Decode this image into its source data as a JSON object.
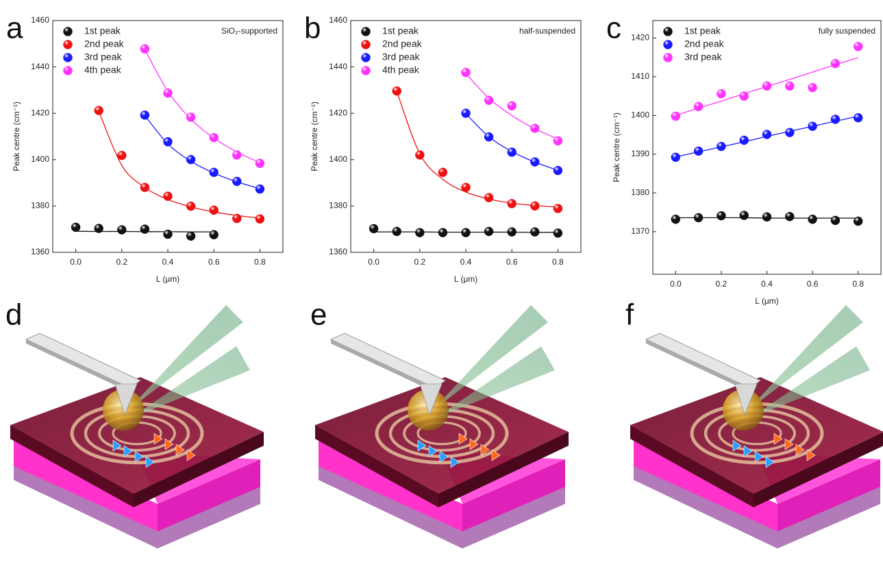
{
  "chart_data": [
    {
      "type": "scatter",
      "panel_label": "a",
      "annotation": "SiO₂-supported",
      "xlabel": "L (μm)",
      "ylabel": "Peak centre (cm⁻¹)",
      "xlim": [
        -0.1,
        0.9
      ],
      "ylim": [
        1360,
        1460
      ],
      "xticks": [
        {
          "value": 0,
          "label": "0.0"
        },
        0.2,
        0.4,
        0.6,
        0.8
      ],
      "yticks": [
        1360,
        1380,
        1400,
        1420,
        1440,
        1460
      ],
      "legend": "upper left",
      "series": [
        {
          "name": "1st peak",
          "color": "#111111",
          "x": [
            0,
            0.1,
            0.2,
            0.3,
            0.4,
            0.5,
            0.6
          ],
          "values": [
            1370.8,
            1370.3,
            1369.7,
            1370.0,
            1367.8,
            1367.0,
            1367.6
          ],
          "fit": [
            1369.1,
            1369.0,
            1369.0,
            1368.9,
            1368.9,
            1368.8,
            1368.8
          ]
        },
        {
          "name": "2nd peak",
          "color": "#ee1111",
          "x": [
            0.1,
            0.2,
            0.3,
            0.4,
            0.5,
            0.6,
            0.7,
            0.8
          ],
          "values": [
            1421.2,
            1401.8,
            1388.0,
            1384.2,
            1379.9,
            1378.2,
            1374.6,
            1374.4
          ],
          "fit": [
            1421.0,
            1397.5,
            1388.0,
            1382.8,
            1379.6,
            1377.4,
            1375.9,
            1374.7
          ]
        },
        {
          "name": "3rd peak",
          "color": "#1a1aff",
          "x": [
            0.3,
            0.4,
            0.5,
            0.6,
            0.7,
            0.8
          ],
          "values": [
            1419.2,
            1407.7,
            1400.0,
            1394.5,
            1390.6,
            1387.3
          ],
          "fit": [
            1419.0,
            1406.8,
            1399.3,
            1394.2,
            1390.4,
            1387.5
          ]
        },
        {
          "name": "4th peak",
          "color": "#ff33ff",
          "x": [
            0.3,
            0.4,
            0.5,
            0.6,
            0.7,
            0.8
          ],
          "values": [
            1447.8,
            1428.7,
            1418.3,
            1409.5,
            1402.0,
            1398.4
          ],
          "fit": [
            1447.5,
            1429.5,
            1417.5,
            1409.3,
            1403.3,
            1398.7
          ]
        }
      ]
    },
    {
      "type": "scatter",
      "panel_label": "b",
      "annotation": "half-suspended",
      "xlabel": "L (μm)",
      "ylabel": "Peak centre (cm⁻¹)",
      "xlim": [
        -0.1,
        0.9
      ],
      "ylim": [
        1360,
        1460
      ],
      "xticks": [
        {
          "value": 0,
          "label": "0.0"
        },
        0.2,
        0.4,
        0.6,
        0.8
      ],
      "yticks": [
        1360,
        1380,
        1400,
        1420,
        1440,
        1460
      ],
      "legend": "upper left",
      "series": [
        {
          "name": "1st peak",
          "color": "#111111",
          "x": [
            0,
            0.1,
            0.2,
            0.3,
            0.4,
            0.5,
            0.6,
            0.7,
            0.8
          ],
          "values": [
            1370.2,
            1369.0,
            1368.5,
            1368.5,
            1368.5,
            1369.0,
            1368.8,
            1368.8,
            1368.3
          ],
          "fit": [
            1368.8,
            1368.8,
            1368.8,
            1368.7,
            1368.7,
            1368.7,
            1368.7,
            1368.6,
            1368.6
          ]
        },
        {
          "name": "2nd peak",
          "color": "#ee1111",
          "x": [
            0.1,
            0.2,
            0.3,
            0.4,
            0.5,
            0.6,
            0.7,
            0.8
          ],
          "values": [
            1429.6,
            1402.0,
            1394.5,
            1388.0,
            1383.6,
            1381.0,
            1380.0,
            1378.9
          ],
          "fit": [
            1429.5,
            1402.5,
            1391.5,
            1386.0,
            1383.0,
            1381.2,
            1380.2,
            1379.5
          ]
        },
        {
          "name": "3rd peak",
          "color": "#1a1aff",
          "x": [
            0.4,
            0.5,
            0.6,
            0.7,
            0.8
          ],
          "values": [
            1420.0,
            1409.8,
            1403.2,
            1399.0,
            1395.3
          ],
          "fit": [
            1419.8,
            1409.9,
            1403.5,
            1398.9,
            1395.4
          ]
        },
        {
          "name": "4th peak",
          "color": "#ff33ff",
          "x": [
            0.4,
            0.5,
            0.6,
            0.7,
            0.8
          ],
          "values": [
            1437.6,
            1425.6,
            1423.2,
            1413.5,
            1408.1
          ],
          "fit": [
            1437.2,
            1426.5,
            1419.0,
            1413.3,
            1408.9
          ]
        }
      ]
    },
    {
      "type": "scatter",
      "panel_label": "c",
      "annotation": "fully suspended",
      "xlabel": "L (μm)",
      "ylabel": "Peak centre (cm⁻¹)",
      "xlim": [
        -0.1,
        0.9
      ],
      "ylim": [
        1359,
        1424.5
      ],
      "xticks": [
        {
          "value": 0,
          "label": "0.0"
        },
        0.2,
        0.4,
        0.6,
        0.8
      ],
      "yticks": [
        1370,
        1380,
        1390,
        1400,
        1410,
        1420
      ],
      "legend": "upper left",
      "series": [
        {
          "name": "1st peak",
          "color": "#111111",
          "x": [
            0,
            0.1,
            0.2,
            0.3,
            0.4,
            0.5,
            0.6,
            0.7,
            0.8
          ],
          "values": [
            1373.2,
            1373.6,
            1374.1,
            1374.2,
            1373.8,
            1373.9,
            1373.2,
            1372.9,
            1372.7
          ],
          "fit": [
            1373.6,
            1373.6,
            1373.6,
            1373.6,
            1373.5,
            1373.5,
            1373.5,
            1373.5,
            1373.5
          ]
        },
        {
          "name": "2nd peak",
          "color": "#1a1aff",
          "x": [
            0,
            0.1,
            0.2,
            0.3,
            0.4,
            0.5,
            0.6,
            0.7,
            0.8
          ],
          "values": [
            1389.2,
            1390.8,
            1392.0,
            1393.6,
            1395.1,
            1395.6,
            1397.2,
            1399.0,
            1399.4
          ],
          "fit": [
            1389.3,
            1390.6,
            1391.9,
            1393.2,
            1394.6,
            1395.9,
            1397.2,
            1398.5,
            1399.8
          ]
        },
        {
          "name": "3rd peak",
          "color": "#ff33ff",
          "x": [
            0,
            0.1,
            0.2,
            0.3,
            0.4,
            0.5,
            0.6,
            0.7,
            0.8
          ],
          "values": [
            1399.8,
            1402.3,
            1405.6,
            1405.0,
            1407.6,
            1407.6,
            1407.2,
            1413.4,
            1417.8
          ],
          "fit": [
            1400.0,
            1401.9,
            1403.7,
            1405.6,
            1407.5,
            1409.3,
            1411.2,
            1413.1,
            1414.9
          ]
        }
      ]
    }
  ],
  "illustrations": [
    {
      "label": "d"
    },
    {
      "label": "e"
    },
    {
      "label": "f"
    }
  ]
}
